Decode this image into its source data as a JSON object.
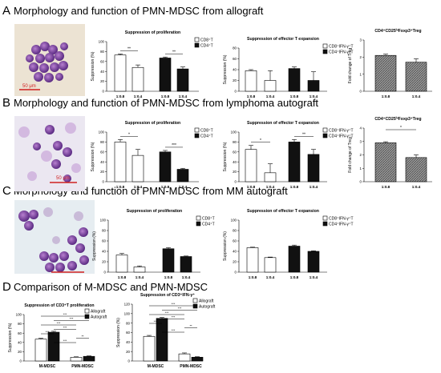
{
  "panels": [
    {
      "letter": "A",
      "title": "Morphology and function of PMN-MDSC from allograft"
    },
    {
      "letter": "B",
      "title": "Morphology and function of PMN-MDSC from lymphoma autograft"
    },
    {
      "letter": "C",
      "title": "Morphology and function of PMN-MDSC from MM autograft"
    },
    {
      "letter": "D",
      "title": "Comparison of M-MDSC and PMN-MDSC"
    }
  ],
  "scale_bar": "50 μm",
  "colors": {
    "white_bar": "#ffffff",
    "black_bar": "#111111",
    "hatched": "#8a8a8a",
    "bar_stroke": "#000000"
  },
  "chart_data": [
    {
      "id": "A1",
      "type": "bar",
      "title": "Suppression of proliferation",
      "ylabel": "Suppression (%)",
      "ylim": [
        0,
        100
      ],
      "yticks": [
        0,
        20,
        40,
        60,
        80,
        100
      ],
      "categories": [
        "1:0.8",
        "1:0.4",
        "1:0.8",
        "1:0.4"
      ],
      "series": [
        {
          "name": "CD8⁺T",
          "values": [
            73,
            48,
            null,
            null
          ]
        },
        {
          "name": "CD4⁺T",
          "values": [
            null,
            null,
            67,
            45
          ]
        }
      ],
      "errors": [
        2,
        5,
        2,
        4
      ],
      "significance": [
        "**",
        "**"
      ]
    },
    {
      "id": "A2",
      "type": "bar",
      "title": "Suppression of effector T expansion",
      "ylabel": "Suppression (%)",
      "ylim": [
        0,
        80
      ],
      "yticks": [
        0,
        20,
        40,
        60,
        80
      ],
      "categories": [
        "1:0.8",
        "1:0.4",
        "1:0.8",
        "1:0.4"
      ],
      "series": [
        {
          "name": "CD8⁺IFN-γ⁺T",
          "values": [
            38,
            20,
            null,
            null
          ]
        },
        {
          "name": "CD4⁺IFN-γ⁺T",
          "values": [
            null,
            null,
            42,
            20
          ]
        }
      ],
      "errors": [
        2,
        18,
        3,
        16
      ]
    },
    {
      "id": "A3",
      "type": "bar",
      "title": "CD4⁺CD25ʰⁱFoxp3⁺Treg",
      "ylabel": "Fold change of Treg",
      "ylim": [
        0,
        3
      ],
      "yticks": [
        0,
        1,
        2,
        3
      ],
      "categories": [
        "1:0.8",
        "1:0.4"
      ],
      "values": [
        2.1,
        1.7
      ],
      "errors": [
        0.07,
        0.2
      ]
    },
    {
      "id": "B1",
      "type": "bar",
      "title": "Suppression of proliferation",
      "ylabel": "Suppression (%)",
      "ylim": [
        0,
        100
      ],
      "yticks": [
        0,
        20,
        40,
        60,
        80,
        100
      ],
      "categories": [
        "1:0.8",
        "1:0.4",
        "1:0.8",
        "1:0.4"
      ],
      "series": [
        {
          "name": "CD8⁺T",
          "values": [
            80,
            53,
            null,
            null
          ]
        },
        {
          "name": "CD4⁺T",
          "values": [
            null,
            null,
            60,
            25
          ]
        }
      ],
      "errors": [
        5,
        12,
        3,
        2
      ],
      "significance": [
        "*",
        "***"
      ]
    },
    {
      "id": "B2",
      "type": "bar",
      "title": "Suppression of effector T expansion",
      "ylabel": "Suppression (%)",
      "ylim": [
        0,
        100
      ],
      "yticks": [
        0,
        20,
        40,
        60,
        80,
        100
      ],
      "categories": [
        "1:0.8",
        "1:0.4",
        "1:0.8",
        "1:0.4"
      ],
      "series": [
        {
          "name": "CD8⁺IFN-γ⁺T",
          "values": [
            65,
            18,
            null,
            null
          ]
        },
        {
          "name": "CD4⁺IFN-γ⁺T",
          "values": [
            null,
            null,
            80,
            55
          ]
        }
      ],
      "errors": [
        8,
        18,
        5,
        10
      ],
      "significance": [
        "*",
        "**"
      ]
    },
    {
      "id": "B3",
      "type": "bar",
      "title": "CD4⁺CD25ʰⁱFoxp3⁺Treg",
      "ylabel": "Fold change of Treg",
      "ylim": [
        0,
        4
      ],
      "yticks": [
        0,
        1,
        2,
        3,
        4
      ],
      "categories": [
        "1:0.8",
        "1:0.4"
      ],
      "values": [
        2.9,
        1.8
      ],
      "errors": [
        0.08,
        0.2
      ],
      "significance": [
        "*"
      ]
    },
    {
      "id": "C1",
      "type": "bar",
      "title": "Suppression of proliferation",
      "ylabel": "Suppression (%)",
      "ylim": [
        0,
        100
      ],
      "yticks": [
        0,
        20,
        40,
        60,
        80,
        100
      ],
      "categories": [
        "1:0.8",
        "1:0.4",
        "1:0.8",
        "1:0.4"
      ],
      "series": [
        {
          "name": "CD8⁺T",
          "values": [
            33,
            10,
            null,
            null
          ]
        },
        {
          "name": "CD4⁺T",
          "values": [
            null,
            null,
            45,
            30
          ]
        }
      ],
      "errors": [
        3,
        2,
        2,
        1
      ]
    },
    {
      "id": "C2",
      "type": "bar",
      "title": "Suppression of effector T expansion",
      "ylabel": "Suppression (%)",
      "ylim": [
        0,
        100
      ],
      "yticks": [
        0,
        20,
        40,
        60,
        80,
        100
      ],
      "categories": [
        "1:0.8",
        "1:0.4",
        "1:0.8",
        "1:0.4"
      ],
      "series": [
        {
          "name": "CD8⁺IFN-γ⁺T",
          "values": [
            47,
            28,
            null,
            null
          ]
        },
        {
          "name": "CD4⁺IFN-γ⁺T",
          "values": [
            null,
            null,
            50,
            40
          ]
        }
      ],
      "errors": [
        1,
        1,
        2,
        1
      ]
    },
    {
      "id": "D1",
      "type": "bar",
      "title": "Suppression of CD3⁺T proliferation",
      "ylabel": "Suppression (%)",
      "ylim": [
        0,
        100
      ],
      "yticks": [
        0,
        20,
        40,
        60,
        80,
        100
      ],
      "categories": [
        "M-MDSC",
        "PMN-MDSC"
      ],
      "series": [
        {
          "name": "Allograft",
          "values": [
            47,
            8
          ]
        },
        {
          "name": "Autograft",
          "values": [
            62,
            10
          ]
        }
      ],
      "errors": [
        [
          2,
          1
        ],
        [
          2,
          1
        ]
      ],
      "significance": [
        "***",
        "***",
        "***",
        "***",
        "***",
        "**",
        "***"
      ]
    },
    {
      "id": "D2",
      "type": "bar",
      "title": "Suppression of CD3⁺IFN-γ⁺",
      "ylabel": "Suppression (%)",
      "ylim": [
        0,
        120
      ],
      "yticks": [
        0,
        20,
        40,
        60,
        80,
        100,
        120
      ],
      "categories": [
        "M-MDSC",
        "PMN-MDSC"
      ],
      "series": [
        {
          "name": "Allograft",
          "values": [
            52,
            15
          ]
        },
        {
          "name": "Autograft",
          "values": [
            90,
            8
          ]
        }
      ],
      "errors": [
        [
          2,
          2
        ],
        [
          2,
          1
        ]
      ],
      "significance": [
        "***",
        "***",
        "***",
        "***",
        "***",
        "**",
        "***"
      ]
    }
  ]
}
